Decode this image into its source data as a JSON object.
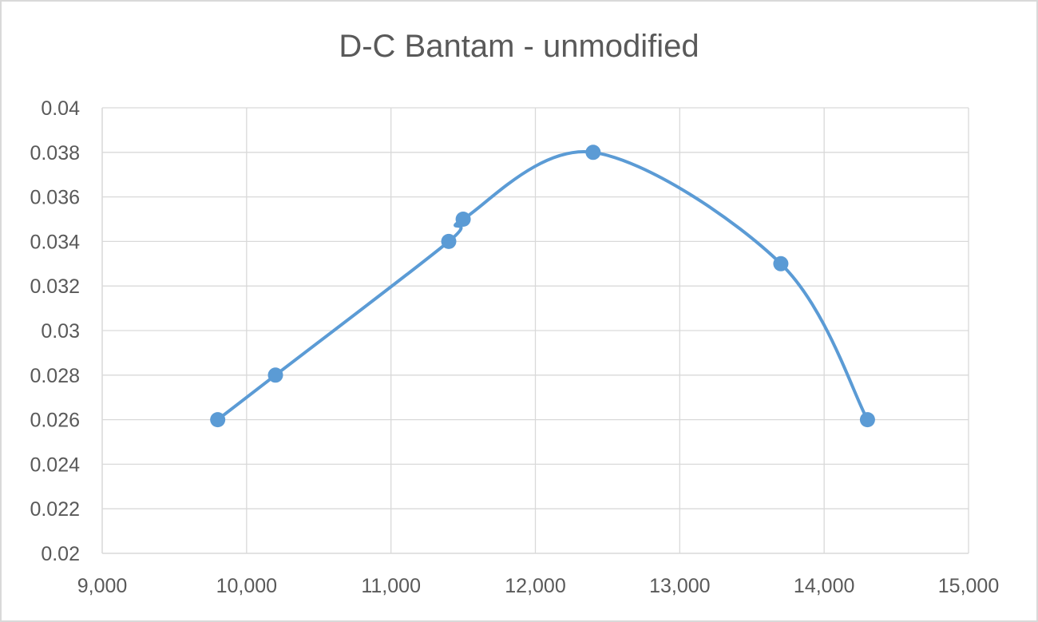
{
  "chart_data": {
    "type": "scatter",
    "title": "D-C Bantam - unmodified",
    "xlabel": "",
    "ylabel": "",
    "xlim": [
      9000,
      15000
    ],
    "ylim": [
      0.02,
      0.04
    ],
    "x_ticks": [
      {
        "value": 9000,
        "label": "9,000"
      },
      {
        "value": 10000,
        "label": "10,000"
      },
      {
        "value": 11000,
        "label": "11,000"
      },
      {
        "value": 12000,
        "label": "12,000"
      },
      {
        "value": 13000,
        "label": "13,000"
      },
      {
        "value": 14000,
        "label": "14,000"
      },
      {
        "value": 15000,
        "label": "15,000"
      }
    ],
    "y_ticks": [
      {
        "value": 0.02,
        "label": "0.02"
      },
      {
        "value": 0.022,
        "label": "0.022"
      },
      {
        "value": 0.024,
        "label": "0.024"
      },
      {
        "value": 0.026,
        "label": "0.026"
      },
      {
        "value": 0.028,
        "label": "0.028"
      },
      {
        "value": 0.03,
        "label": "0.03"
      },
      {
        "value": 0.032,
        "label": "0.032"
      },
      {
        "value": 0.034,
        "label": "0.034"
      },
      {
        "value": 0.036,
        "label": "0.036"
      },
      {
        "value": 0.038,
        "label": "0.038"
      },
      {
        "value": 0.04,
        "label": "0.04"
      }
    ],
    "grid": true,
    "legend": "none",
    "smooth_line": true,
    "series": [
      {
        "color": "#5b9bd5",
        "points": [
          {
            "x": 9800,
            "y": 0.026
          },
          {
            "x": 10200,
            "y": 0.028
          },
          {
            "x": 11400,
            "y": 0.034
          },
          {
            "x": 11500,
            "y": 0.035
          },
          {
            "x": 12400,
            "y": 0.038
          },
          {
            "x": 13700,
            "y": 0.033
          },
          {
            "x": 14300,
            "y": 0.026
          }
        ]
      }
    ]
  }
}
